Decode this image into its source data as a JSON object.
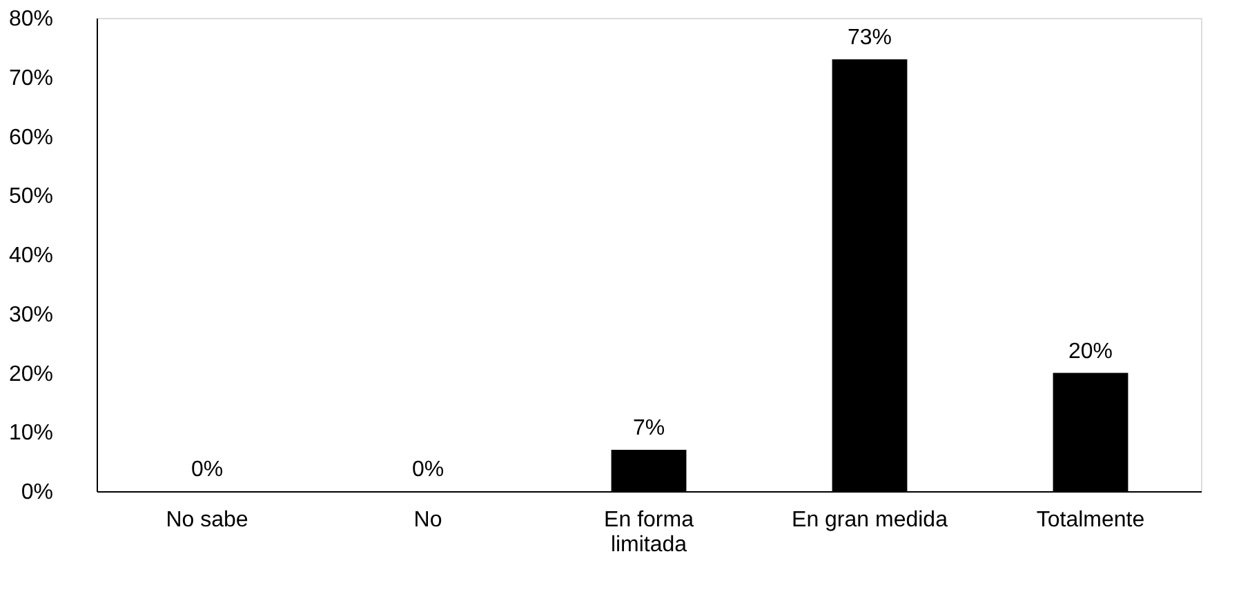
{
  "chart_data": {
    "type": "bar",
    "categories": [
      "No sabe",
      "No",
      "En forma limitada",
      "En gran medida",
      "Totalmente"
    ],
    "values": [
      0,
      0,
      7,
      73,
      20
    ],
    "color": "#000000",
    "value_labels": [
      "0%",
      "0%",
      "7%",
      "73%",
      "20%"
    ],
    "ylim": [
      0,
      80
    ],
    "yticks": [
      {
        "value": 0,
        "label": "0%"
      },
      {
        "value": 10,
        "label": "10%"
      },
      {
        "value": 20,
        "label": "20%"
      },
      {
        "value": 30,
        "label": "30%"
      },
      {
        "value": 40,
        "label": "40%"
      },
      {
        "value": 50,
        "label": "50%"
      },
      {
        "value": 60,
        "label": "60%"
      },
      {
        "value": 70,
        "label": "70%"
      },
      {
        "value": 80,
        "label": "80%"
      }
    ],
    "grid": false
  }
}
